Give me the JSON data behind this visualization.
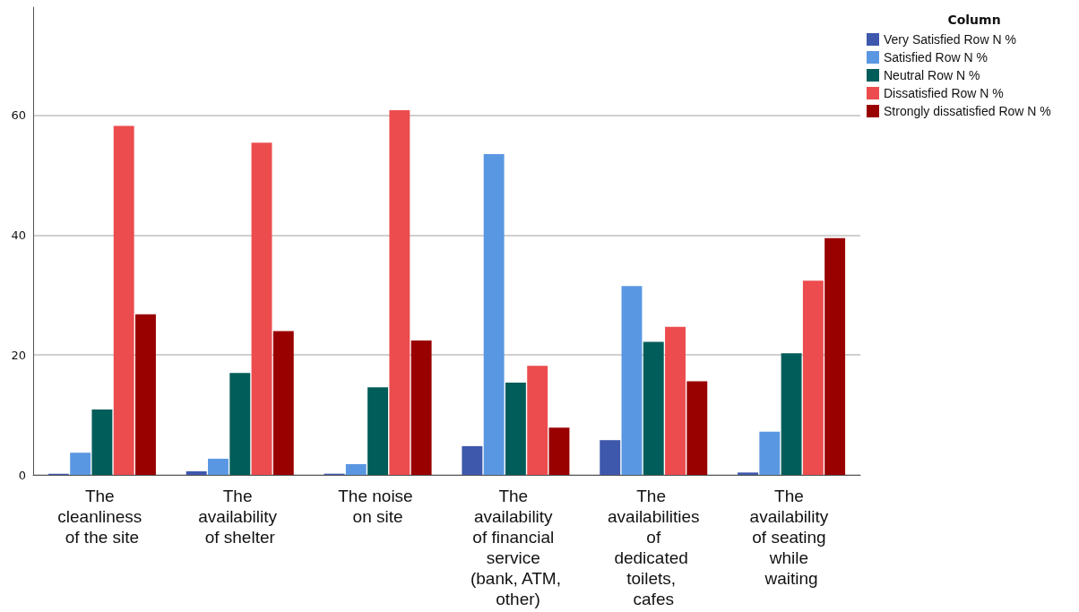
{
  "chart_data": {
    "type": "bar",
    "legend_title": "Column",
    "categories": [
      "The cleanliness of the site",
      "The availability of shelter",
      "The noise on site",
      "The availability of financial service (bank, ATM, other)",
      "The availabilities of dedicated toilets, cafes",
      "The availability of seating while waiting"
    ],
    "series": [
      {
        "name": "Very Satisfied Row N %",
        "color": "#3e58ac",
        "values": [
          0.2,
          0.6,
          0.2,
          4.8,
          5.8,
          0.4
        ]
      },
      {
        "name": "Satisfied Row N %",
        "color": "#5a97e2",
        "values": [
          3.7,
          2.7,
          1.8,
          53.5,
          31.5,
          7.2
        ]
      },
      {
        "name": "Neutral Row N %",
        "color": "#015d5a",
        "values": [
          10.9,
          17.0,
          14.6,
          15.4,
          22.2,
          20.3
        ]
      },
      {
        "name": "Dissatisfied Row N %",
        "color": "#ec4c4e",
        "values": [
          58.2,
          55.4,
          60.8,
          18.2,
          24.7,
          32.4
        ]
      },
      {
        "name": "Strongly dissatisfied Row N %",
        "color": "#990000",
        "values": [
          26.8,
          24.0,
          22.4,
          7.9,
          15.6,
          39.5
        ]
      }
    ],
    "ylim": [
      0,
      78
    ],
    "yticks": [
      0,
      20,
      40,
      60
    ],
    "grid": "y",
    "legend": "top right"
  }
}
